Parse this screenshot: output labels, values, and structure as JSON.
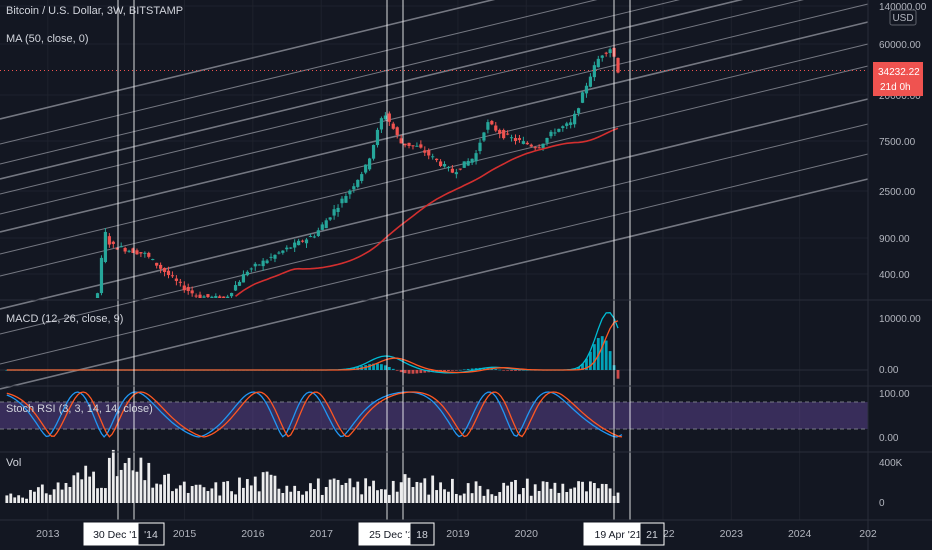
{
  "header": {
    "symbol": "Bitcoin / U.S. Dollar, 3W, BITSTAMP",
    "ma_label": "MA (50, close, 0)",
    "currency": "USD"
  },
  "price_badge": {
    "value": "34232.22",
    "countdown": "21d 0h"
  },
  "colors": {
    "background": "#131722",
    "up": "#26a69a",
    "down": "#ef5350",
    "ma": "#d32f2f",
    "channel": "#9598a1",
    "macd": "#2962ff",
    "macd_cyan": "#00bcd4",
    "signal": "#ff5722",
    "stoch_band": "#7e57c2",
    "vol": "#ffffff"
  },
  "chart_data": [
    {
      "type": "candlestick",
      "title": "Bitcoin / U.S. Dollar, 3W, BITSTAMP",
      "y_scale": "log",
      "y_ticks": [
        "140000.00",
        "60000.00",
        "20000.00",
        "7500.00",
        "2500.00",
        "900.00",
        "400.00"
      ],
      "last_price": 34232.22,
      "ma": {
        "name": "MA (50, close, 0)"
      },
      "x_ticks": [
        "2013",
        "2015",
        "2016",
        "2017",
        "2019",
        "2020",
        "2022",
        "2023",
        "2024",
        "202"
      ],
      "markers": [
        "30 Dec '13",
        "'14",
        "25 Dec '17",
        "18",
        "19 Apr '21",
        "21"
      ],
      "closes_approx": [
        {
          "date": "2012-06",
          "close": 6
        },
        {
          "date": "2012-12",
          "close": 13
        },
        {
          "date": "2013-04",
          "close": 110
        },
        {
          "date": "2013-09",
          "close": 125
        },
        {
          "date": "2013-11",
          "close": 1000
        },
        {
          "date": "2013-12",
          "close": 750
        },
        {
          "date": "2014-06",
          "close": 620
        },
        {
          "date": "2014-12",
          "close": 320
        },
        {
          "date": "2015-03",
          "close": 250
        },
        {
          "date": "2015-08",
          "close": 230
        },
        {
          "date": "2015-12",
          "close": 430
        },
        {
          "date": "2016-06",
          "close": 650
        },
        {
          "date": "2016-12",
          "close": 960
        },
        {
          "date": "2017-06",
          "close": 2500
        },
        {
          "date": "2017-09",
          "close": 4300
        },
        {
          "date": "2017-12",
          "close": 14000
        },
        {
          "date": "2018-03",
          "close": 7000
        },
        {
          "date": "2018-06",
          "close": 6400
        },
        {
          "date": "2018-12",
          "close": 3700
        },
        {
          "date": "2019-04",
          "close": 5200
        },
        {
          "date": "2019-06",
          "close": 11000
        },
        {
          "date": "2019-09",
          "close": 8300
        },
        {
          "date": "2019-12",
          "close": 7200
        },
        {
          "date": "2020-03",
          "close": 6400
        },
        {
          "date": "2020-06",
          "close": 9200
        },
        {
          "date": "2020-09",
          "close": 10800
        },
        {
          "date": "2020-12",
          "close": 29000
        },
        {
          "date": "2021-02",
          "close": 48000
        },
        {
          "date": "2021-04",
          "close": 57000
        },
        {
          "date": "2021-05",
          "close": 34232
        }
      ]
    },
    {
      "type": "line",
      "title": "MACD (12, 26, close, 9)",
      "y_ticks": [
        "10000.00",
        "0.00"
      ],
      "series": [
        {
          "name": "MACD"
        },
        {
          "name": "Signal"
        }
      ]
    },
    {
      "type": "line",
      "title": "Stoch RSI (3, 3, 14, 14, close)",
      "y_ticks": [
        "100.00",
        "0.00"
      ],
      "band": [
        20,
        80
      ]
    },
    {
      "type": "bar",
      "title": "Vol",
      "y_ticks": [
        "400K",
        "0"
      ]
    }
  ]
}
